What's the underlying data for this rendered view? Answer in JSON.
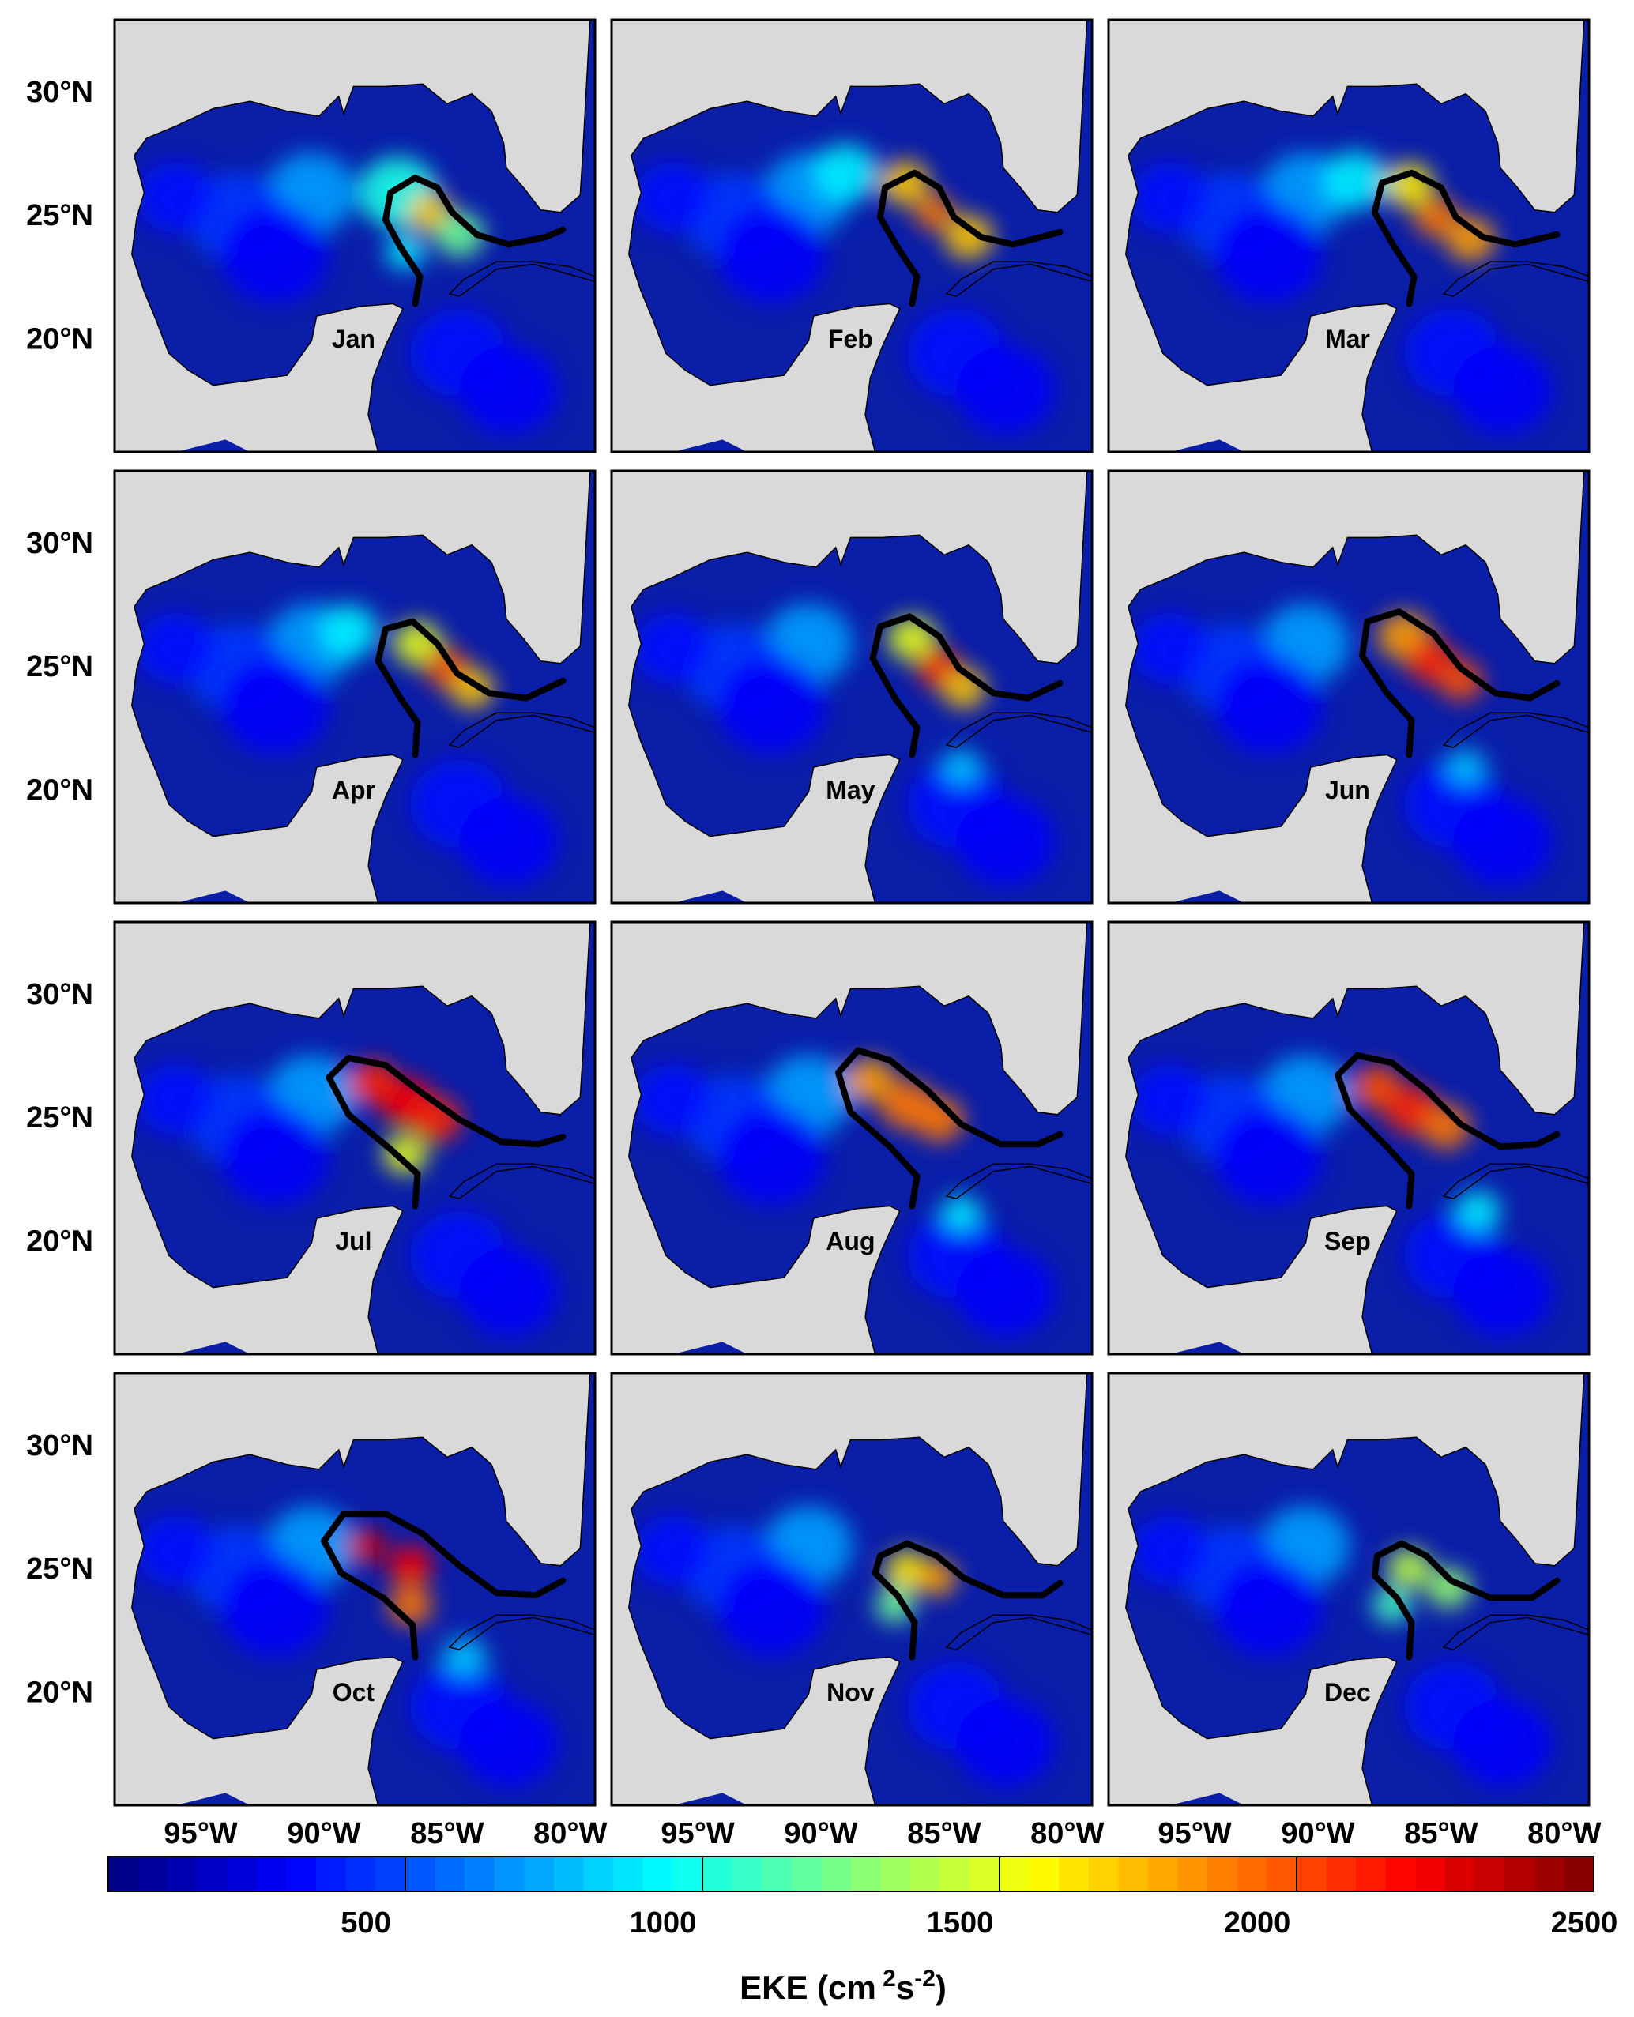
{
  "chart_data": {
    "type": "heatmap",
    "title": "",
    "description_note": "",
    "panels": [
      {
        "month": "Jan"
      },
      {
        "month": "Feb"
      },
      {
        "month": "Mar"
      },
      {
        "month": "Apr"
      },
      {
        "month": "May"
      },
      {
        "month": "Jun"
      },
      {
        "month": "Jul"
      },
      {
        "month": "Aug"
      },
      {
        "month": "Sep"
      },
      {
        "month": "Oct"
      },
      {
        "month": "Nov"
      },
      {
        "month": "Dec"
      }
    ],
    "x_axis": {
      "ticks": [
        -95,
        -90,
        -85,
        -80
      ],
      "tick_labels": [
        "95°W",
        "90°W",
        "85°W",
        "80°W"
      ],
      "range": [
        -98.5,
        -79
      ]
    },
    "y_axis": {
      "ticks": [
        20,
        25,
        30
      ],
      "tick_labels": [
        "20°N",
        "25°N",
        "30°N"
      ],
      "range": [
        15.5,
        33
      ]
    },
    "colorbar": {
      "label": "EKE (cm²s⁻²)",
      "label_base": "EKE (cm",
      "label_sup1": "2",
      "label_mid": "s",
      "label_sup2": "-2",
      "label_end": ")",
      "ticks": [
        500,
        1000,
        1500,
        2000,
        2500
      ],
      "tick_labels": [
        "500",
        "1000",
        "1500",
        "2000",
        "2500"
      ],
      "range": [
        0,
        2500
      ],
      "colormap": "jet"
    },
    "colors": {
      "land": "#d9d9d9",
      "ocean_low": "#0a1ea8",
      "loop_current_contour": "#000000"
    }
  }
}
